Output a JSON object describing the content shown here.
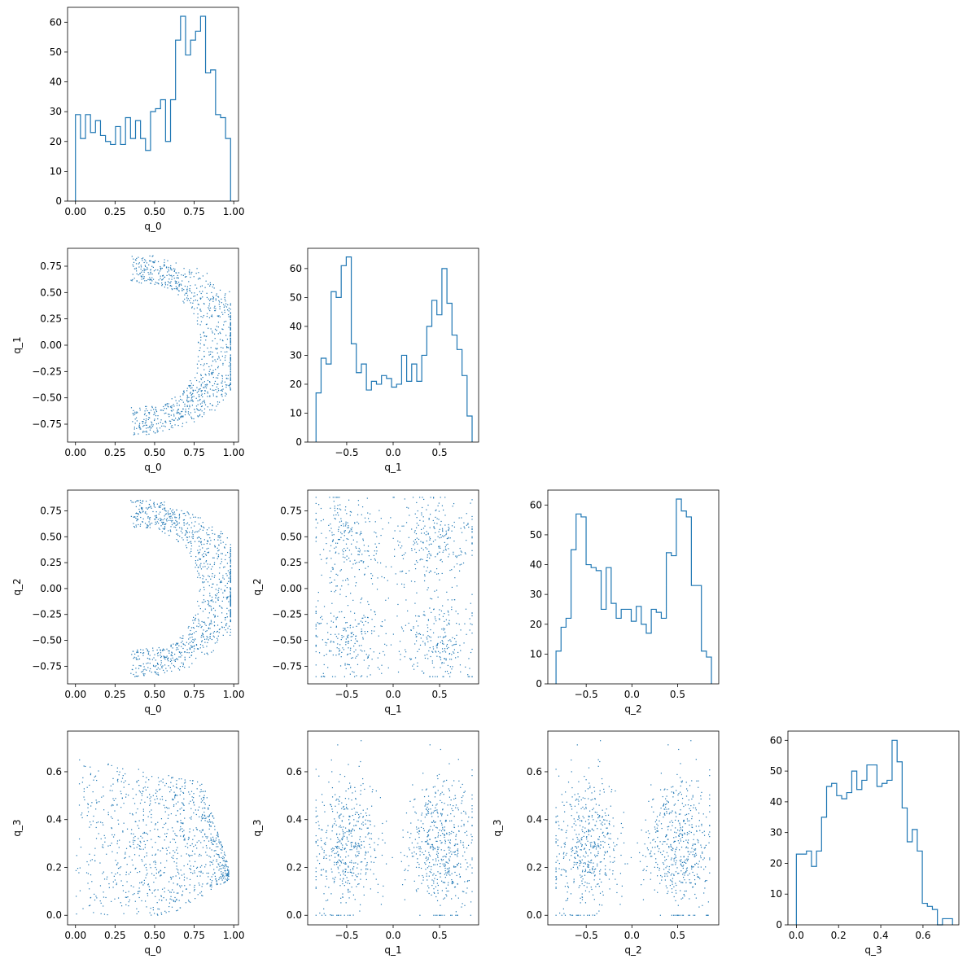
{
  "figure": {
    "kind": "corner plot"
  },
  "colors": {
    "series": "#1f77b4",
    "axes": "#000000",
    "background": "#ffffff"
  },
  "chart_data": [
    {
      "type": "histogram",
      "row": 0,
      "col": 0,
      "xlabel": "q_0",
      "ylabel": "",
      "xlim": [
        -0.05,
        1.03
      ],
      "ylim": [
        0,
        65
      ],
      "xticks": [
        0.0,
        0.25,
        0.5,
        0.75,
        1.0
      ],
      "xtick_labels": [
        "0.00",
        "0.25",
        "0.50",
        "0.75",
        "1.00"
      ],
      "yticks": [
        0,
        10,
        20,
        30,
        40,
        50,
        60
      ],
      "ytick_labels": [
        "0",
        "10",
        "20",
        "30",
        "40",
        "50",
        "60"
      ],
      "bin_range": [
        0.0,
        0.98
      ],
      "counts": [
        29,
        21,
        29,
        23,
        27,
        22,
        20,
        19,
        25,
        19,
        28,
        21,
        27,
        21,
        17,
        30,
        31,
        34,
        20,
        34,
        54,
        62,
        49,
        54,
        57,
        62,
        43,
        44,
        29,
        28,
        21
      ]
    },
    {
      "type": "scatter",
      "row": 1,
      "col": 0,
      "xlabel": "q_0",
      "ylabel": "q_1",
      "xlim": [
        -0.05,
        1.03
      ],
      "ylim": [
        -0.92,
        0.92
      ],
      "xticks": [
        0.0,
        0.25,
        0.5,
        0.75,
        1.0
      ],
      "xtick_labels": [
        "0.00",
        "0.25",
        "0.50",
        "0.75",
        "1.00"
      ],
      "yticks": [
        -0.75,
        -0.5,
        -0.25,
        0.0,
        0.25,
        0.5,
        0.75
      ],
      "ytick_labels": [
        "−0.75",
        "−0.50",
        "−0.25",
        "0.00",
        "0.25",
        "0.50",
        "0.75"
      ],
      "shape": "crescent"
    },
    {
      "type": "histogram",
      "row": 1,
      "col": 1,
      "xlabel": "q_1",
      "ylabel": "",
      "xlim": [
        -0.92,
        0.92
      ],
      "ylim": [
        0,
        67
      ],
      "xticks": [
        -0.5,
        0.0,
        0.5
      ],
      "xtick_labels": [
        "−0.5",
        "0.0",
        "0.5"
      ],
      "yticks": [
        0,
        10,
        20,
        30,
        40,
        50,
        60
      ],
      "ytick_labels": [
        "0",
        "10",
        "20",
        "30",
        "40",
        "50",
        "60"
      ],
      "bin_range": [
        -0.83,
        0.85
      ],
      "counts": [
        17,
        29,
        27,
        52,
        50,
        61,
        64,
        34,
        24,
        27,
        18,
        21,
        20,
        23,
        22,
        19,
        20,
        30,
        21,
        27,
        21,
        30,
        40,
        49,
        44,
        60,
        48,
        37,
        32,
        23,
        9
      ]
    },
    {
      "type": "scatter",
      "row": 2,
      "col": 0,
      "xlabel": "q_0",
      "ylabel": "q_2",
      "xlim": [
        -0.05,
        1.03
      ],
      "ylim": [
        -0.92,
        0.95
      ],
      "xticks": [
        0.0,
        0.25,
        0.5,
        0.75,
        1.0
      ],
      "xtick_labels": [
        "0.00",
        "0.25",
        "0.50",
        "0.75",
        "1.00"
      ],
      "yticks": [
        -0.75,
        -0.5,
        -0.25,
        0.0,
        0.25,
        0.5,
        0.75
      ],
      "ytick_labels": [
        "−0.75",
        "−0.50",
        "−0.25",
        "0.00",
        "0.25",
        "0.50",
        "0.75"
      ],
      "shape": "crescent"
    },
    {
      "type": "scatter",
      "row": 2,
      "col": 1,
      "xlabel": "q_1",
      "ylabel": "q_2",
      "xlim": [
        -0.92,
        0.92
      ],
      "ylim": [
        -0.92,
        0.95
      ],
      "xticks": [
        -0.5,
        0.0,
        0.5
      ],
      "xtick_labels": [
        "−0.5",
        "0.0",
        "0.5"
      ],
      "yticks": [
        -0.75,
        -0.5,
        -0.25,
        0.0,
        0.25,
        0.5,
        0.75
      ],
      "ytick_labels": [
        "−0.75",
        "−0.50",
        "−0.25",
        "0.00",
        "0.25",
        "0.50",
        "0.75"
      ],
      "shape": "four-cluster"
    },
    {
      "type": "histogram",
      "row": 2,
      "col": 2,
      "xlabel": "q_2",
      "ylabel": "",
      "xlim": [
        -0.92,
        0.95
      ],
      "ylim": [
        0,
        65
      ],
      "xticks": [
        -0.5,
        0.0,
        0.5
      ],
      "xtick_labels": [
        "−0.5",
        "0.0",
        "0.5"
      ],
      "yticks": [
        0,
        10,
        20,
        30,
        40,
        50,
        60
      ],
      "ytick_labels": [
        "0",
        "10",
        "20",
        "30",
        "40",
        "50",
        "60"
      ],
      "bin_range": [
        -0.83,
        0.87
      ],
      "counts": [
        11,
        19,
        22,
        45,
        57,
        56,
        40,
        39,
        38,
        25,
        39,
        27,
        22,
        25,
        25,
        21,
        26,
        20,
        17,
        25,
        24,
        22,
        44,
        43,
        62,
        58,
        56,
        33,
        33,
        11,
        9
      ]
    },
    {
      "type": "scatter",
      "row": 3,
      "col": 0,
      "xlabel": "q_0",
      "ylabel": "q_3",
      "xlim": [
        -0.05,
        1.03
      ],
      "ylim": [
        -0.04,
        0.77
      ],
      "xticks": [
        0.0,
        0.25,
        0.5,
        0.75,
        1.0
      ],
      "xtick_labels": [
        "0.00",
        "0.25",
        "0.50",
        "0.75",
        "1.00"
      ],
      "yticks": [
        0.0,
        0.2,
        0.4,
        0.6
      ],
      "ytick_labels": [
        "0.0",
        "0.2",
        "0.4",
        "0.6"
      ],
      "shape": "wedge"
    },
    {
      "type": "scatter",
      "row": 3,
      "col": 1,
      "xlabel": "q_1",
      "ylabel": "q_3",
      "xlim": [
        -0.92,
        0.92
      ],
      "ylim": [
        -0.04,
        0.77
      ],
      "xticks": [
        -0.5,
        0.0,
        0.5
      ],
      "xtick_labels": [
        "−0.5",
        "0.0",
        "0.5"
      ],
      "yticks": [
        0.0,
        0.2,
        0.4,
        0.6
      ],
      "ytick_labels": [
        "0.0",
        "0.2",
        "0.4",
        "0.6"
      ],
      "shape": "two-band"
    },
    {
      "type": "scatter",
      "row": 3,
      "col": 2,
      "xlabel": "q_2",
      "ylabel": "q_3",
      "xlim": [
        -0.92,
        0.95
      ],
      "ylim": [
        -0.04,
        0.77
      ],
      "xticks": [
        -0.5,
        0.0,
        0.5
      ],
      "xtick_labels": [
        "−0.5",
        "0.0",
        "0.5"
      ],
      "yticks": [
        0.0,
        0.2,
        0.4,
        0.6
      ],
      "ytick_labels": [
        "0.0",
        "0.2",
        "0.4",
        "0.6"
      ],
      "shape": "two-band"
    },
    {
      "type": "histogram",
      "row": 3,
      "col": 3,
      "xlabel": "q_3",
      "ylabel": "",
      "xlim": [
        -0.04,
        0.77
      ],
      "ylim": [
        0,
        63
      ],
      "xticks": [
        0.0,
        0.2,
        0.4,
        0.6
      ],
      "xtick_labels": [
        "0.0",
        "0.2",
        "0.4",
        "0.6"
      ],
      "yticks": [
        0,
        10,
        20,
        30,
        40,
        50,
        60
      ],
      "ytick_labels": [
        "0",
        "10",
        "20",
        "30",
        "40",
        "50",
        "60"
      ],
      "bin_range": [
        0.0,
        0.74
      ],
      "counts": [
        23,
        23,
        24,
        19,
        24,
        35,
        45,
        46,
        42,
        41,
        43,
        50,
        44,
        47,
        52,
        52,
        45,
        46,
        47,
        60,
        53,
        38,
        27,
        31,
        24,
        7,
        6,
        5,
        0,
        2,
        2
      ]
    }
  ]
}
